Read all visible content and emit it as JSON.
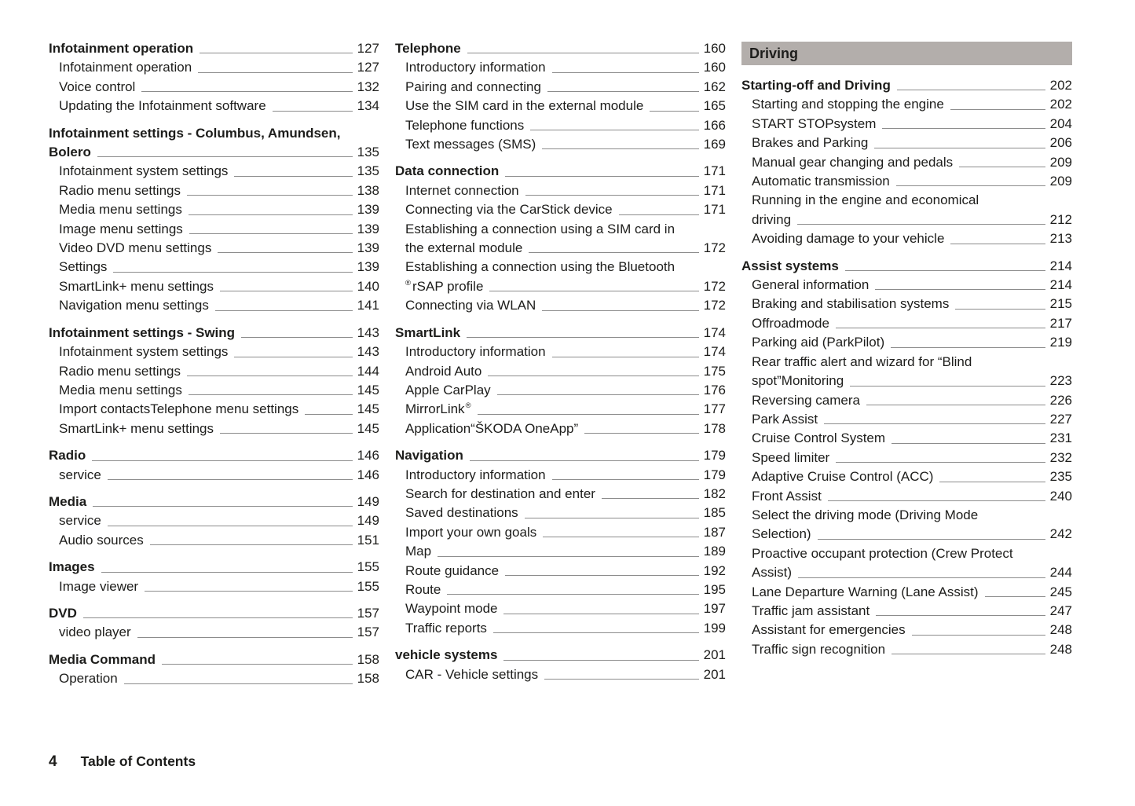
{
  "colors": {
    "text": "#1d1d1b",
    "leader": "#8c8c8c",
    "part_header_bg": "#b3aeab"
  },
  "footer": {
    "page_number": "4",
    "label": "Table of Contents"
  },
  "columns": [
    {
      "sections": [
        {
          "entries": [
            {
              "label": "Infotainment operation",
              "page": "127",
              "bold": true
            },
            {
              "label": "Infotainment operation",
              "page": "127"
            },
            {
              "label": "Voice control",
              "page": "132"
            },
            {
              "label": "Updating the Infotainment software",
              "page": "134"
            }
          ]
        },
        {
          "entries": [
            {
              "lines": [
                "Infotainment settings - Columbus, Amundsen,",
                "Bolero"
              ],
              "page": "135",
              "bold": true
            },
            {
              "label": "Infotainment system settings",
              "page": "135"
            },
            {
              "label": "Radio menu settings",
              "page": "138"
            },
            {
              "label": "Media menu settings",
              "page": "139"
            },
            {
              "label": "Image menu settings",
              "page": "139"
            },
            {
              "label": "Video DVD menu settings",
              "page": "139"
            },
            {
              "label": "Settings",
              "page": "139"
            },
            {
              "label": "SmartLink+ menu settings",
              "page": "140"
            },
            {
              "label": "Navigation menu settings",
              "page": "141"
            }
          ]
        },
        {
          "entries": [
            {
              "label": "Infotainment settings - Swing",
              "page": "143",
              "bold": true
            },
            {
              "label": "Infotainment system settings",
              "page": "143"
            },
            {
              "label": "Radio menu settings",
              "page": "144"
            },
            {
              "label": "Media menu settings",
              "page": "145"
            },
            {
              "label": "Import contactsTelephone menu settings",
              "page": "145"
            },
            {
              "label": "SmartLink+ menu settings",
              "page": "145"
            }
          ]
        },
        {
          "entries": [
            {
              "label": "Radio",
              "page": "146",
              "bold": true
            },
            {
              "label": "service",
              "page": "146"
            }
          ]
        },
        {
          "entries": [
            {
              "label": "Media",
              "page": "149",
              "bold": true
            },
            {
              "label": "service",
              "page": "149"
            },
            {
              "label": "Audio sources",
              "page": "151"
            }
          ]
        },
        {
          "entries": [
            {
              "label": "Images",
              "page": "155",
              "bold": true
            },
            {
              "label": "Image viewer",
              "page": "155"
            }
          ]
        },
        {
          "entries": [
            {
              "label": "DVD",
              "page": "157",
              "bold": true
            },
            {
              "label": "video player",
              "page": "157"
            }
          ]
        },
        {
          "entries": [
            {
              "label": "Media Command",
              "page": "158",
              "bold": true
            },
            {
              "label": "Operation",
              "page": "158"
            }
          ]
        }
      ]
    },
    {
      "sections": [
        {
          "entries": [
            {
              "label": "Telephone",
              "page": "160",
              "bold": true
            },
            {
              "label": "Introductory information",
              "page": "160"
            },
            {
              "label": "Pairing and connecting",
              "page": "162"
            },
            {
              "label": "Use the SIM card in the external module",
              "page": "165"
            },
            {
              "label": "Telephone functions",
              "page": "166"
            },
            {
              "label": "Text messages (SMS)",
              "page": "169"
            }
          ]
        },
        {
          "entries": [
            {
              "label": "Data connection",
              "page": "171",
              "bold": true
            },
            {
              "label": "Internet connection",
              "page": "171"
            },
            {
              "label": "Connecting via the CarStick device",
              "page": "171"
            },
            {
              "lines": [
                "Establishing a connection using a SIM card in",
                "the external module"
              ],
              "page": "172"
            },
            {
              "lines": [
                "Establishing a connection using the Bluetooth",
                "rSAP profile"
              ],
              "pre_sup2": "®",
              "page": "172"
            },
            {
              "label": "Connecting via WLAN",
              "page": "172"
            }
          ]
        },
        {
          "entries": [
            {
              "label": "SmartLink",
              "page": "174",
              "bold": true
            },
            {
              "label": "Introductory information",
              "page": "174"
            },
            {
              "label": "Android Auto",
              "page": "175"
            },
            {
              "label": "Apple CarPlay",
              "page": "176"
            },
            {
              "label": "MirrorLink",
              "post_sup": "®",
              "page": "177"
            },
            {
              "label": "Application“ŠKODA OneApp”",
              "page": "178"
            }
          ]
        },
        {
          "entries": [
            {
              "label": "Navigation",
              "page": "179",
              "bold": true
            },
            {
              "label": "Introductory information",
              "page": "179"
            },
            {
              "label": "Search for destination and enter",
              "page": "182"
            },
            {
              "label": "Saved destinations",
              "page": "185"
            },
            {
              "label": "Import your own goals",
              "page": "187"
            },
            {
              "label": "Map",
              "page": "189"
            },
            {
              "label": "Route guidance",
              "page": "192"
            },
            {
              "label": "Route",
              "page": "195"
            },
            {
              "label": "Waypoint mode",
              "page": "197"
            },
            {
              "label": "Traffic reports",
              "page": "199"
            }
          ]
        },
        {
          "entries": [
            {
              "label": "vehicle systems",
              "page": "201",
              "bold": true
            },
            {
              "label": "CAR - Vehicle settings",
              "page": "201"
            }
          ]
        }
      ]
    },
    {
      "header": "Driving",
      "sections": [
        {
          "entries": [
            {
              "label": "Starting-off and Driving",
              "page": "202",
              "bold": true
            },
            {
              "label": "Starting and stopping the engine",
              "page": "202"
            },
            {
              "label": "START STOPsystem",
              "page": "204"
            },
            {
              "label": "Brakes and Parking",
              "page": "206"
            },
            {
              "label": "Manual gear changing and pedals",
              "page": "209"
            },
            {
              "label": "Automatic transmission",
              "page": "209"
            },
            {
              "lines": [
                "Running in the engine and economical",
                "driving"
              ],
              "page": "212"
            },
            {
              "label": "Avoiding damage to your vehicle",
              "page": "213"
            }
          ]
        },
        {
          "entries": [
            {
              "label": "Assist systems",
              "page": "214",
              "bold": true
            },
            {
              "label": "General information",
              "page": "214"
            },
            {
              "label": "Braking and stabilisation systems",
              "page": "215"
            },
            {
              "label": "Offroadmode",
              "page": "217"
            },
            {
              "label": "Parking aid (ParkPilot)",
              "page": "219"
            },
            {
              "lines": [
                "Rear traffic alert and wizard for “Blind",
                "spot”Monitoring"
              ],
              "page": "223"
            },
            {
              "label": "Reversing camera",
              "page": "226"
            },
            {
              "label": "Park Assist",
              "page": "227"
            },
            {
              "label": "Cruise Control System",
              "page": "231"
            },
            {
              "label": "Speed limiter",
              "page": "232"
            },
            {
              "label": "Adaptive Cruise Control (ACC)",
              "page": "235"
            },
            {
              "label": "Front Assist",
              "page": "240"
            },
            {
              "lines": [
                "Select the driving mode (Driving Mode",
                "Selection)"
              ],
              "page": "242"
            },
            {
              "lines": [
                "Proactive occupant protection (Crew Protect",
                "Assist)"
              ],
              "page": "244"
            },
            {
              "label": "Lane Departure Warning (Lane Assist)",
              "page": "245"
            },
            {
              "label": "Traffic jam assistant",
              "page": "247"
            },
            {
              "label": "Assistant for emergencies",
              "page": "248"
            },
            {
              "label": "Traffic sign recognition",
              "page": "248"
            }
          ]
        }
      ]
    }
  ]
}
